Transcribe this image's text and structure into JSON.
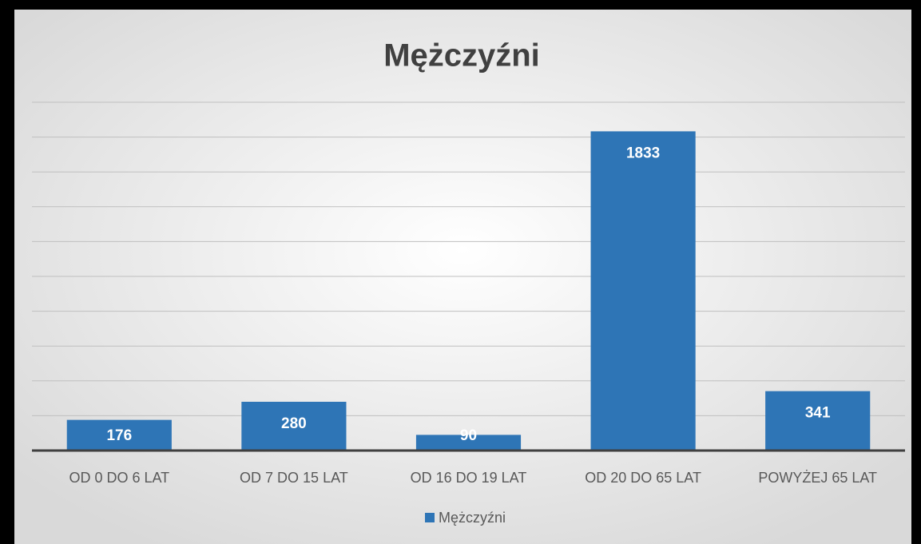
{
  "chart_data": {
    "type": "bar",
    "title": "Mężczyźni",
    "categories": [
      "OD 0 DO 6 LAT",
      "OD 7 DO 15 LAT",
      "OD 16 DO 19 LAT",
      "OD 20 DO 65 LAT",
      "POWYŻEJ 65 LAT"
    ],
    "series": [
      {
        "name": "Mężczyźni",
        "color": "#2e75b6",
        "values": [
          176,
          280,
          90,
          1833,
          341
        ]
      }
    ],
    "ylim": [
      0,
      2000
    ],
    "yticks": [
      0,
      200,
      400,
      600,
      800,
      1000,
      1200,
      1400,
      1600,
      1800,
      2000
    ],
    "grid": true,
    "legend": "bottom"
  }
}
